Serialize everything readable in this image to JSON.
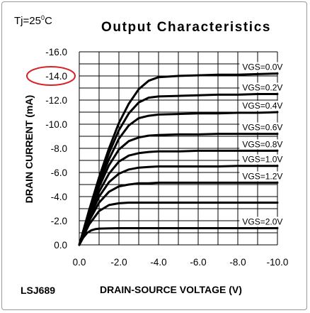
{
  "condition": {
    "prefix": "Tj=25",
    "sup": "0",
    "suffix": "C"
  },
  "part_number": "LSJ689",
  "colors": {
    "curve": "#000000",
    "grid": "#000000",
    "highlight": "#d82027"
  },
  "chart_data": {
    "type": "line",
    "title": "Output Characteristics",
    "xlabel": "DRAIN-SOURCE VOLTAGE (V)",
    "ylabel": "DRAIN CURRENT (mA)",
    "xlim": [
      0,
      -10
    ],
    "ylim": [
      0,
      -16
    ],
    "x_ticks": [
      "0.0",
      "-2.0",
      "-4.0",
      "-6.0",
      "-8.0",
      "-10.0"
    ],
    "y_ticks": [
      "0.0",
      "-2.0",
      "-4.0",
      "-6.0",
      "-8.0",
      "-10.0",
      "-12.0",
      "-14.0",
      "-16.0"
    ],
    "grid": true,
    "highlighted_tick": "-14.0",
    "series": [
      {
        "name": "VGS=0.0V",
        "x": [
          0,
          -0.5,
          -1.0,
          -1.5,
          -2.0,
          -2.5,
          -3.0,
          -3.5,
          -4.0,
          -5.0,
          -6.0,
          -7.0,
          -8.0,
          -9.0,
          -10.0
        ],
        "y": [
          0,
          -2.9,
          -5.6,
          -8.0,
          -10.1,
          -11.7,
          -12.9,
          -13.6,
          -13.9,
          -14.0,
          -14.05,
          -14.1,
          -14.1,
          -14.15,
          -14.2
        ]
      },
      {
        "name": "VGS=0.2V",
        "x": [
          0,
          -0.5,
          -1.0,
          -1.5,
          -2.0,
          -2.5,
          -3.0,
          -3.5,
          -4.0,
          -5.0,
          -6.0,
          -7.0,
          -8.0,
          -9.0,
          -10.0
        ],
        "y": [
          0,
          -2.8,
          -5.4,
          -7.6,
          -9.5,
          -10.9,
          -11.8,
          -12.2,
          -12.3,
          -12.35,
          -12.4,
          -12.45,
          -12.45,
          -12.5,
          -12.5
        ]
      },
      {
        "name": "VGS=0.4V",
        "x": [
          0,
          -0.5,
          -1.0,
          -1.5,
          -2.0,
          -2.5,
          -3.0,
          -3.5,
          -4.0,
          -5.0,
          -6.0,
          -7.0,
          -8.0,
          -9.0,
          -10.0
        ],
        "y": [
          0,
          -2.7,
          -5.1,
          -7.1,
          -8.8,
          -9.9,
          -10.5,
          -10.7,
          -10.8,
          -10.85,
          -10.9,
          -10.9,
          -10.95,
          -10.95,
          -11.0
        ]
      },
      {
        "name": "VGS=0.6V",
        "x": [
          0,
          -0.5,
          -1.0,
          -1.5,
          -2.0,
          -2.5,
          -3.0,
          -3.5,
          -4.0,
          -5.0,
          -6.0,
          -7.0,
          -8.0,
          -9.0,
          -10.0
        ],
        "y": [
          0,
          -2.6,
          -4.8,
          -6.6,
          -7.9,
          -8.6,
          -8.9,
          -9.05,
          -9.1,
          -9.15,
          -9.15,
          -9.2,
          -9.2,
          -9.2,
          -9.2
        ]
      },
      {
        "name": "VGS=0.8V",
        "x": [
          0,
          -0.5,
          -1.0,
          -1.5,
          -2.0,
          -2.5,
          -3.0,
          -3.5,
          -4.0,
          -5.0,
          -6.0,
          -7.0,
          -8.0,
          -9.0,
          -10.0
        ],
        "y": [
          0,
          -2.4,
          -4.4,
          -5.9,
          -6.9,
          -7.4,
          -7.6,
          -7.7,
          -7.75,
          -7.75,
          -7.8,
          -7.8,
          -7.8,
          -7.8,
          -7.8
        ]
      },
      {
        "name": "VGS=1.0V",
        "x": [
          0,
          -0.5,
          -1.0,
          -1.5,
          -2.0,
          -2.5,
          -3.0,
          -3.5,
          -4.0,
          -5.0,
          -6.0,
          -7.0,
          -8.0,
          -9.0,
          -10.0
        ],
        "y": [
          0,
          -2.2,
          -4.0,
          -5.2,
          -5.9,
          -6.25,
          -6.4,
          -6.45,
          -6.5,
          -6.5,
          -6.5,
          -6.5,
          -6.55,
          -6.55,
          -6.55
        ]
      },
      {
        "name": "VGS=1.2V",
        "x": [
          0,
          -0.5,
          -1.0,
          -1.5,
          -2.0,
          -2.5,
          -3.0,
          -3.5,
          -4.0,
          -5.0,
          -6.0,
          -7.0,
          -8.0,
          -9.0,
          -10.0
        ],
        "y": [
          0,
          -2.0,
          -3.5,
          -4.4,
          -4.85,
          -5.0,
          -5.1,
          -5.1,
          -5.15,
          -5.15,
          -5.15,
          -5.15,
          -5.15,
          -5.15,
          -5.15
        ]
      },
      {
        "name": "",
        "x": [
          0,
          -0.5,
          -1.0,
          -1.5,
          -2.0,
          -2.5,
          -3.0,
          -3.5,
          -4.0,
          -5.0,
          -6.0,
          -7.0,
          -8.0,
          -9.0,
          -10.0
        ],
        "y": [
          0,
          -1.7,
          -2.8,
          -3.3,
          -3.45,
          -3.5,
          -3.5,
          -3.5,
          -3.5,
          -3.5,
          -3.5,
          -3.5,
          -3.5,
          -3.5,
          -3.5
        ]
      },
      {
        "name": "VGS=2.0V",
        "x": [
          0,
          -0.2,
          -0.4,
          -0.6,
          -0.8,
          -1.0,
          -1.5,
          -2.0,
          -3.0,
          -4.0,
          -5.0,
          -6.0,
          -7.0,
          -8.0,
          -9.0,
          -10.0
        ],
        "y": [
          0,
          -0.6,
          -1.0,
          -1.2,
          -1.3,
          -1.35,
          -1.37,
          -1.38,
          -1.38,
          -1.38,
          -1.38,
          -1.38,
          -1.38,
          -1.38,
          -1.38,
          -1.38
        ]
      }
    ]
  }
}
